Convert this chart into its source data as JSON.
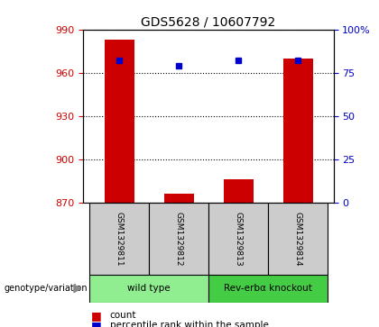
{
  "title": "GDS5628 / 10607792",
  "samples": [
    "GSM1329811",
    "GSM1329812",
    "GSM1329813",
    "GSM1329814"
  ],
  "counts": [
    983,
    876,
    886,
    970
  ],
  "percentiles": [
    82,
    79,
    82,
    82
  ],
  "ylim_left": [
    870,
    990
  ],
  "ylim_right": [
    0,
    100
  ],
  "yticks_left": [
    870,
    900,
    930,
    960,
    990
  ],
  "yticks_right": [
    0,
    25,
    50,
    75,
    100
  ],
  "ytick_labels_right": [
    "0",
    "25",
    "50",
    "75",
    "100%"
  ],
  "bar_color": "#cc0000",
  "scatter_color": "#0000cc",
  "bar_width": 0.5,
  "groups": [
    {
      "label": "wild type",
      "indices": [
        0,
        1
      ],
      "color": "#90ee90"
    },
    {
      "label": "Rev-erbα knockout",
      "indices": [
        2,
        3
      ],
      "color": "#44cc44"
    }
  ],
  "group_row_label": "genotype/variation",
  "legend_count_label": "count",
  "legend_percentile_label": "percentile rank within the sample",
  "sample_cell_color": "#cccccc",
  "title_fontsize": 10,
  "tick_fontsize": 8
}
